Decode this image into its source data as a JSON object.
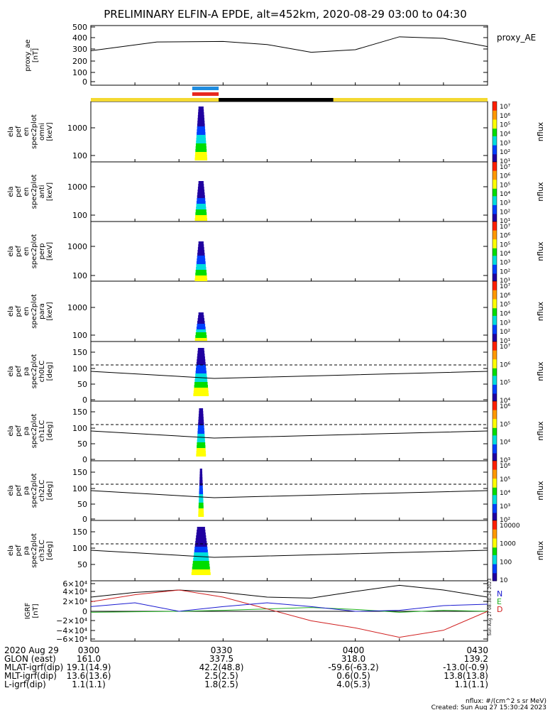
{
  "title": "PRELIMINARY ELFIN-A EPDE, alt=452km, 2020-08-29 03:00 to 04:30",
  "colors": {
    "yellow": "#f4d930",
    "black": "#000000",
    "blue": "#1f8de0",
    "red": "#e8271f",
    "grf_n": "#1a1ad0",
    "grf_e": "#21b021",
    "grf_d": "#d02020"
  },
  "panels": [
    {
      "ylabel": [
        "proxy_ae",
        "[nT]"
      ],
      "ticks": [
        "500",
        "400",
        "300",
        "200",
        "100",
        "0"
      ],
      "legend": "proxy_AE"
    },
    {
      "ylabel": [
        "ela",
        "pef",
        "en",
        "spec2plot",
        "omni",
        "[keV]"
      ],
      "ticks": [
        "1000",
        "100"
      ],
      "cbar": [
        "10⁷",
        "10⁶",
        "10⁵",
        "10⁴",
        "10³",
        "10²",
        "10¹"
      ],
      "cbar_label": "nflux"
    },
    {
      "ylabel": [
        "ela",
        "pef",
        "en",
        "spec2plot",
        "anti",
        "[keV]"
      ],
      "ticks": [
        "1000",
        "100"
      ],
      "cbar": [
        "10⁷",
        "10⁶",
        "10⁵",
        "10⁴",
        "10³",
        "10²",
        "10¹"
      ],
      "cbar_label": "nflux"
    },
    {
      "ylabel": [
        "ela",
        "pef",
        "en",
        "spec2plot",
        "perp",
        "[keV]"
      ],
      "ticks": [
        "1000",
        "100"
      ],
      "cbar": [
        "10⁷",
        "10⁶",
        "10⁵",
        "10⁴",
        "10³",
        "10²",
        "10¹"
      ],
      "cbar_label": "nflux"
    },
    {
      "ylabel": [
        "ela",
        "pef",
        "en",
        "spec2plot",
        "para",
        "[keV]"
      ],
      "ticks": [
        "1000",
        "100"
      ],
      "cbar": [
        "10⁷",
        "10⁶",
        "10⁵",
        "10⁴",
        "10³",
        "10²",
        "10¹"
      ],
      "cbar_label": "nflux"
    },
    {
      "ylabel": [
        "ela",
        "pef",
        "pa",
        "spec2plot",
        "ch0LC",
        "[deg]"
      ],
      "ticks": [
        "150",
        "100",
        "50",
        "0"
      ],
      "cbar": [
        "10⁷",
        "10⁶",
        "10⁵",
        "10⁴"
      ],
      "cbar_label": "nflux"
    },
    {
      "ylabel": [
        "ela",
        "pef",
        "pa",
        "spec2plot",
        "ch1LC",
        "[deg]"
      ],
      "ticks": [
        "150",
        "100",
        "50",
        "0"
      ],
      "cbar": [
        "10⁶",
        "10⁵",
        "10⁴",
        "10³"
      ],
      "cbar_label": "nflux"
    },
    {
      "ylabel": [
        "ela",
        "pef",
        "pa",
        "spec2plot",
        "ch2LC",
        "[deg]"
      ],
      "ticks": [
        "150",
        "100",
        "50",
        "0"
      ],
      "cbar": [
        "10⁶",
        "10⁵",
        "10⁴",
        "10³",
        "10²"
      ],
      "cbar_label": "nflux"
    },
    {
      "ylabel": [
        "ela",
        "pef",
        "pa",
        "spec2plot",
        "ch3LC",
        "[deg]"
      ],
      "ticks": [
        "150",
        "100",
        "50"
      ],
      "cbar": [
        "10000",
        "1000",
        "100",
        "10"
      ],
      "cbar_label": "nflux"
    },
    {
      "ylabel": [
        "IGRF",
        "[nT]"
      ],
      "ticks": [
        "6×10⁴",
        "4×10⁴",
        "2×10⁴",
        "0",
        "−2×10⁴",
        "−4×10⁴",
        "−6×10⁴"
      ],
      "legend_n": "N",
      "legend_e": "E",
      "legend_d": "D"
    }
  ],
  "footer": {
    "rows": [
      [
        "2020 Aug 29",
        "0300",
        "0330",
        "0400",
        "0430"
      ],
      [
        "GLON (east)",
        "161.0",
        "337.5",
        "318.0",
        "139.2"
      ],
      [
        "MLAT-igrf(dip)",
        "19.1(14.9)",
        "42.2(48.8)",
        "-59.6(-63.2)",
        "-13.0(-0.9)"
      ],
      [
        "MLT-igrf(dip)",
        "13.6(13.6)",
        "2.5(2.5)",
        "0.6(0.5)",
        "13.8(13.8)"
      ],
      [
        "L-igrf(dip)",
        "1.1(1.1)",
        "1.8(2.5)",
        "4.0(5.3)",
        "1.1(1.1)"
      ]
    ],
    "units": "nflux: #/(cm^2 s sr MeV)",
    "created": "Created: Sun Aug 27 15:30:24 2023",
    "side_stamp": "Sun Aug 27 08:30:24 2023"
  },
  "chart_data": {
    "type": "line",
    "x_time_ticks": [
      "0300",
      "0330",
      "0400",
      "0430"
    ],
    "proxy_ae": {
      "ylim": [
        0,
        550
      ],
      "x": [
        "03:00",
        "03:15",
        "03:30",
        "03:40",
        "03:50",
        "04:00",
        "04:10",
        "04:20",
        "04:30"
      ],
      "values": [
        320,
        405,
        410,
        380,
        305,
        330,
        455,
        440,
        360
      ]
    },
    "science_zone_bar": {
      "start": "03:23",
      "end": "03:29"
    },
    "igrf": {
      "ylim": [
        -60000,
        60000
      ],
      "x": [
        "03:00",
        "03:10",
        "03:20",
        "03:30",
        "03:40",
        "03:50",
        "04:00",
        "04:10",
        "04:20",
        "04:30"
      ],
      "series": [
        {
          "name": "N",
          "values": [
            30000,
            40000,
            45000,
            40000,
            30000,
            28000,
            42000,
            55000,
            45000,
            30000
          ]
        },
        {
          "name": "E",
          "values": [
            -2000,
            -1000,
            0,
            2000,
            5000,
            8000,
            4000,
            -2000,
            2000,
            0
          ]
        },
        {
          "name": "D",
          "values": [
            20000,
            35000,
            45000,
            30000,
            5000,
            -20000,
            -35000,
            -55000,
            -40000,
            0
          ]
        }
      ]
    }
  }
}
